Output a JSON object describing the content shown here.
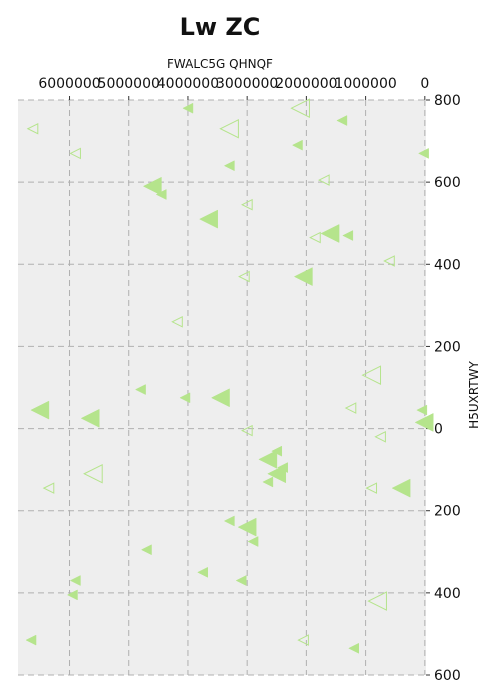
{
  "chart_data": {
    "type": "scatter",
    "title": "Lw ZC",
    "xlabel": "FWALC5G QHNQF",
    "ylabel": "H5UXRTWY",
    "x_axis_position": "top",
    "y_axis_position": "right",
    "x_inverted": true,
    "xlim": [
      -20000,
      6870000
    ],
    "ylim": [
      -600,
      800
    ],
    "x_ticks": [
      0,
      1000000,
      2000000,
      3000000,
      4000000,
      5000000,
      6000000
    ],
    "x_tick_labels": [
      "0",
      "1000000",
      "2000000",
      "3000000",
      "4000000",
      "5000000",
      "6000000"
    ],
    "y_ticks": [
      800,
      600,
      400,
      200,
      0,
      -200,
      -400,
      -600
    ],
    "y_tick_labels": [
      "800",
      "600",
      "400",
      "200",
      "0",
      "200",
      "400",
      "600"
    ],
    "grid": true,
    "marker": "triangle-left",
    "color": "#b5e48c",
    "points": [
      {
        "x": 6620000,
        "y": 730,
        "size": 5,
        "filled": false
      },
      {
        "x": 5900000,
        "y": 670,
        "size": 5,
        "filled": false
      },
      {
        "x": 4000000,
        "y": 780,
        "size": 5,
        "filled": true
      },
      {
        "x": 3300000,
        "y": 730,
        "size": 9,
        "filled": false
      },
      {
        "x": 2100000,
        "y": 780,
        "size": 9,
        "filled": false
      },
      {
        "x": 1400000,
        "y": 750,
        "size": 5,
        "filled": true
      },
      {
        "x": 2150000,
        "y": 690,
        "size": 5,
        "filled": true
      },
      {
        "x": 3300000,
        "y": 640,
        "size": 5,
        "filled": true
      },
      {
        "x": 20000,
        "y": 670,
        "size": 5,
        "filled": true
      },
      {
        "x": 1700000,
        "y": 605,
        "size": 5,
        "filled": false
      },
      {
        "x": 4600000,
        "y": 590,
        "size": 9,
        "filled": true
      },
      {
        "x": 4450000,
        "y": 570,
        "size": 5,
        "filled": true
      },
      {
        "x": 3000000,
        "y": 545,
        "size": 5,
        "filled": false
      },
      {
        "x": 3650000,
        "y": 510,
        "size": 9,
        "filled": true
      },
      {
        "x": 1600000,
        "y": 475,
        "size": 9,
        "filled": true
      },
      {
        "x": 1300000,
        "y": 470,
        "size": 5,
        "filled": true
      },
      {
        "x": 1850000,
        "y": 465,
        "size": 5,
        "filled": false
      },
      {
        "x": 600000,
        "y": 408,
        "size": 5,
        "filled": false
      },
      {
        "x": 2050000,
        "y": 370,
        "size": 9,
        "filled": true
      },
      {
        "x": 3050000,
        "y": 370,
        "size": 5,
        "filled": false
      },
      {
        "x": 4180000,
        "y": 260,
        "size": 5,
        "filled": false
      },
      {
        "x": 900000,
        "y": 130,
        "size": 9,
        "filled": false
      },
      {
        "x": 4800000,
        "y": 95,
        "size": 5,
        "filled": true
      },
      {
        "x": 4050000,
        "y": 75,
        "size": 5,
        "filled": true
      },
      {
        "x": 3450000,
        "y": 75,
        "size": 9,
        "filled": true
      },
      {
        "x": 6500000,
        "y": 45,
        "size": 9,
        "filled": true
      },
      {
        "x": 5650000,
        "y": 25,
        "size": 9,
        "filled": true
      },
      {
        "x": 1250000,
        "y": 50,
        "size": 5,
        "filled": false
      },
      {
        "x": 50000,
        "y": 45,
        "size": 5,
        "filled": true
      },
      {
        "x": 10000,
        "y": 15,
        "size": 9,
        "filled": true
      },
      {
        "x": 3000000,
        "y": -5,
        "size": 5,
        "filled": false
      },
      {
        "x": 750000,
        "y": -20,
        "size": 5,
        "filled": false
      },
      {
        "x": 2500000,
        "y": -55,
        "size": 5,
        "filled": true
      },
      {
        "x": 2650000,
        "y": -75,
        "size": 9,
        "filled": true
      },
      {
        "x": 2400000,
        "y": -95,
        "size": 5,
        "filled": true
      },
      {
        "x": 2500000,
        "y": -110,
        "size": 9,
        "filled": true
      },
      {
        "x": 5600000,
        "y": -110,
        "size": 9,
        "filled": false
      },
      {
        "x": 6350000,
        "y": -145,
        "size": 5,
        "filled": false
      },
      {
        "x": 2650000,
        "y": -130,
        "size": 5,
        "filled": true
      },
      {
        "x": 900000,
        "y": -145,
        "size": 5,
        "filled": false
      },
      {
        "x": 400000,
        "y": -145,
        "size": 9,
        "filled": true
      },
      {
        "x": 3300000,
        "y": -225,
        "size": 5,
        "filled": true
      },
      {
        "x": 3000000,
        "y": -240,
        "size": 9,
        "filled": true
      },
      {
        "x": 2900000,
        "y": -275,
        "size": 5,
        "filled": true
      },
      {
        "x": 4700000,
        "y": -295,
        "size": 5,
        "filled": true
      },
      {
        "x": 3750000,
        "y": -350,
        "size": 5,
        "filled": true
      },
      {
        "x": 3100000,
        "y": -370,
        "size": 5,
        "filled": true
      },
      {
        "x": 5900000,
        "y": -370,
        "size": 5,
        "filled": true
      },
      {
        "x": 5950000,
        "y": -405,
        "size": 5,
        "filled": true
      },
      {
        "x": 800000,
        "y": -420,
        "size": 9,
        "filled": false
      },
      {
        "x": 6650000,
        "y": -515,
        "size": 5,
        "filled": true
      },
      {
        "x": 2050000,
        "y": -515,
        "size": 5,
        "filled": false
      },
      {
        "x": 1200000,
        "y": -535,
        "size": 5,
        "filled": true
      }
    ]
  }
}
